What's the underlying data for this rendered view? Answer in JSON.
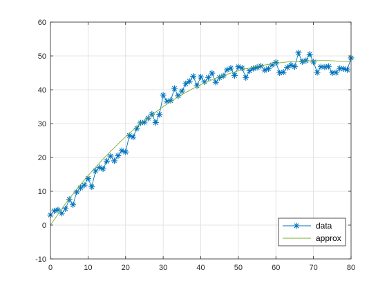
{
  "chart_data": {
    "type": "line",
    "xlim": [
      0,
      80
    ],
    "ylim": [
      -10,
      60
    ],
    "x_ticks": [
      "0",
      "10",
      "20",
      "30",
      "40",
      "50",
      "60",
      "70",
      "80"
    ],
    "y_ticks": [
      "-10",
      "0",
      "10",
      "20",
      "30",
      "40",
      "50",
      "60"
    ],
    "grid": true,
    "legend_position": "bottom-right",
    "series": [
      {
        "name": "data",
        "color": "#0072BD",
        "marker": "asterisk",
        "x": [
          0,
          1,
          2,
          3,
          4,
          5,
          6,
          7,
          8,
          9,
          10,
          11,
          12,
          13,
          14,
          15,
          16,
          17,
          18,
          19,
          20,
          21,
          22,
          23,
          24,
          25,
          26,
          27,
          28,
          29,
          30,
          31,
          32,
          33,
          34,
          35,
          36,
          37,
          38,
          39,
          40,
          41,
          42,
          43,
          44,
          45,
          46,
          47,
          48,
          49,
          50,
          51,
          52,
          53,
          54,
          55,
          56,
          57,
          58,
          59,
          60,
          61,
          62,
          63,
          64,
          65,
          66,
          67,
          68,
          69,
          70,
          71,
          72,
          73,
          74,
          75,
          76,
          77,
          78,
          79,
          80
        ],
        "y": [
          3.0,
          4.2,
          4.5,
          3.5,
          4.8,
          7.6,
          6.0,
          9.8,
          11.0,
          11.8,
          13.8,
          11.3,
          16.0,
          17.0,
          16.6,
          18.9,
          20.4,
          19.0,
          20.5,
          22.0,
          21.6,
          26.5,
          26.0,
          28.6,
          30.2,
          30.4,
          31.6,
          32.8,
          30.3,
          32.7,
          38.4,
          36.6,
          36.8,
          40.4,
          38.2,
          39.6,
          41.8,
          42.5,
          44.0,
          41.2,
          43.8,
          42.3,
          43.6,
          44.9,
          42.2,
          43.6,
          44.1,
          45.9,
          46.4,
          44.2,
          46.8,
          46.4,
          43.6,
          45.6,
          46.3,
          46.6,
          47.0,
          45.8,
          46.2,
          47.3,
          48.1,
          45.0,
          45.2,
          46.6,
          47.3,
          46.8,
          50.9,
          48.3,
          48.6,
          50.5,
          48.2,
          45.1,
          46.8,
          46.7,
          46.9,
          45.0,
          45.1,
          46.3,
          46.2,
          45.9,
          49.4
        ]
      },
      {
        "name": "approx",
        "color": "#77AC30",
        "marker": "none",
        "x": [
          0,
          2,
          4,
          6,
          8,
          10,
          12,
          14,
          16,
          18,
          20,
          22,
          24,
          26,
          28,
          30,
          32,
          34,
          36,
          38,
          40,
          42,
          44,
          46,
          48,
          50,
          52,
          54,
          56,
          58,
          60,
          62,
          64,
          66,
          68,
          70,
          72,
          74,
          76,
          78,
          80
        ],
        "y": [
          0.0,
          3.2,
          6.3,
          9.2,
          12.0,
          14.6,
          17.1,
          19.5,
          21.8,
          24.0,
          26.1,
          28.1,
          30.0,
          31.7,
          33.4,
          35.0,
          36.5,
          37.9,
          39.2,
          40.4,
          41.5,
          42.5,
          43.4,
          44.2,
          44.9,
          45.6,
          46.2,
          46.7,
          47.1,
          47.5,
          47.8,
          48.1,
          48.3,
          48.4,
          48.5,
          48.6,
          48.6,
          48.6,
          48.5,
          48.4,
          48.3
        ]
      }
    ]
  }
}
